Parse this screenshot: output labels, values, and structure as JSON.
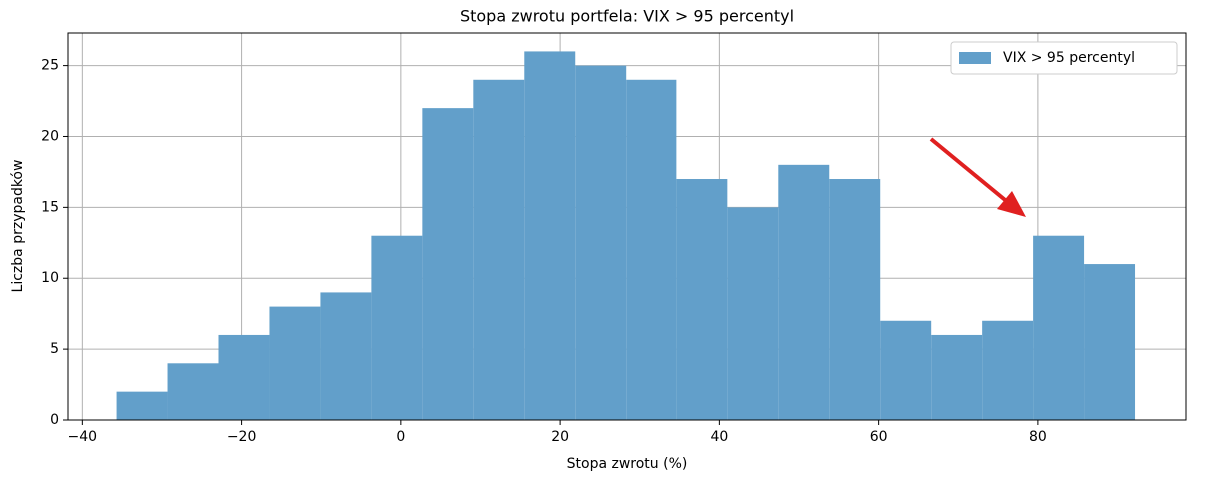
{
  "chart_data": {
    "type": "histogram",
    "title": "Stopa zwrotu portfela: VIX > 95 percentyl",
    "xlabel": "Stopa zwrotu (%)",
    "ylabel": "Liczba przypadków",
    "bins": [
      -35.7,
      -29.3,
      -22.9,
      -16.5,
      -10.1,
      -3.7,
      2.7,
      9.1,
      15.5,
      21.9,
      28.3,
      34.6,
      41.0,
      47.4,
      53.8,
      60.2,
      66.6,
      73.0,
      79.4,
      85.8,
      92.2
    ],
    "series": [
      {
        "name": "VIX > 95 percentyl",
        "color": "#629fca",
        "values": [
          2,
          4,
          6,
          8,
          9,
          13,
          22,
          24,
          26,
          25,
          24,
          17,
          15,
          18,
          17,
          7,
          6,
          7,
          13,
          11
        ]
      }
    ],
    "xlim": [
      -41.8,
      98.6
    ],
    "ylim": [
      0,
      27.3
    ],
    "xticks": [
      {
        "value": -40,
        "label": "−40"
      },
      {
        "value": -20,
        "label": "−20"
      },
      0,
      20,
      40,
      60,
      80
    ],
    "yticks": [
      0,
      5,
      10,
      15,
      20,
      25
    ],
    "grid": true,
    "legend": "upper right"
  }
}
